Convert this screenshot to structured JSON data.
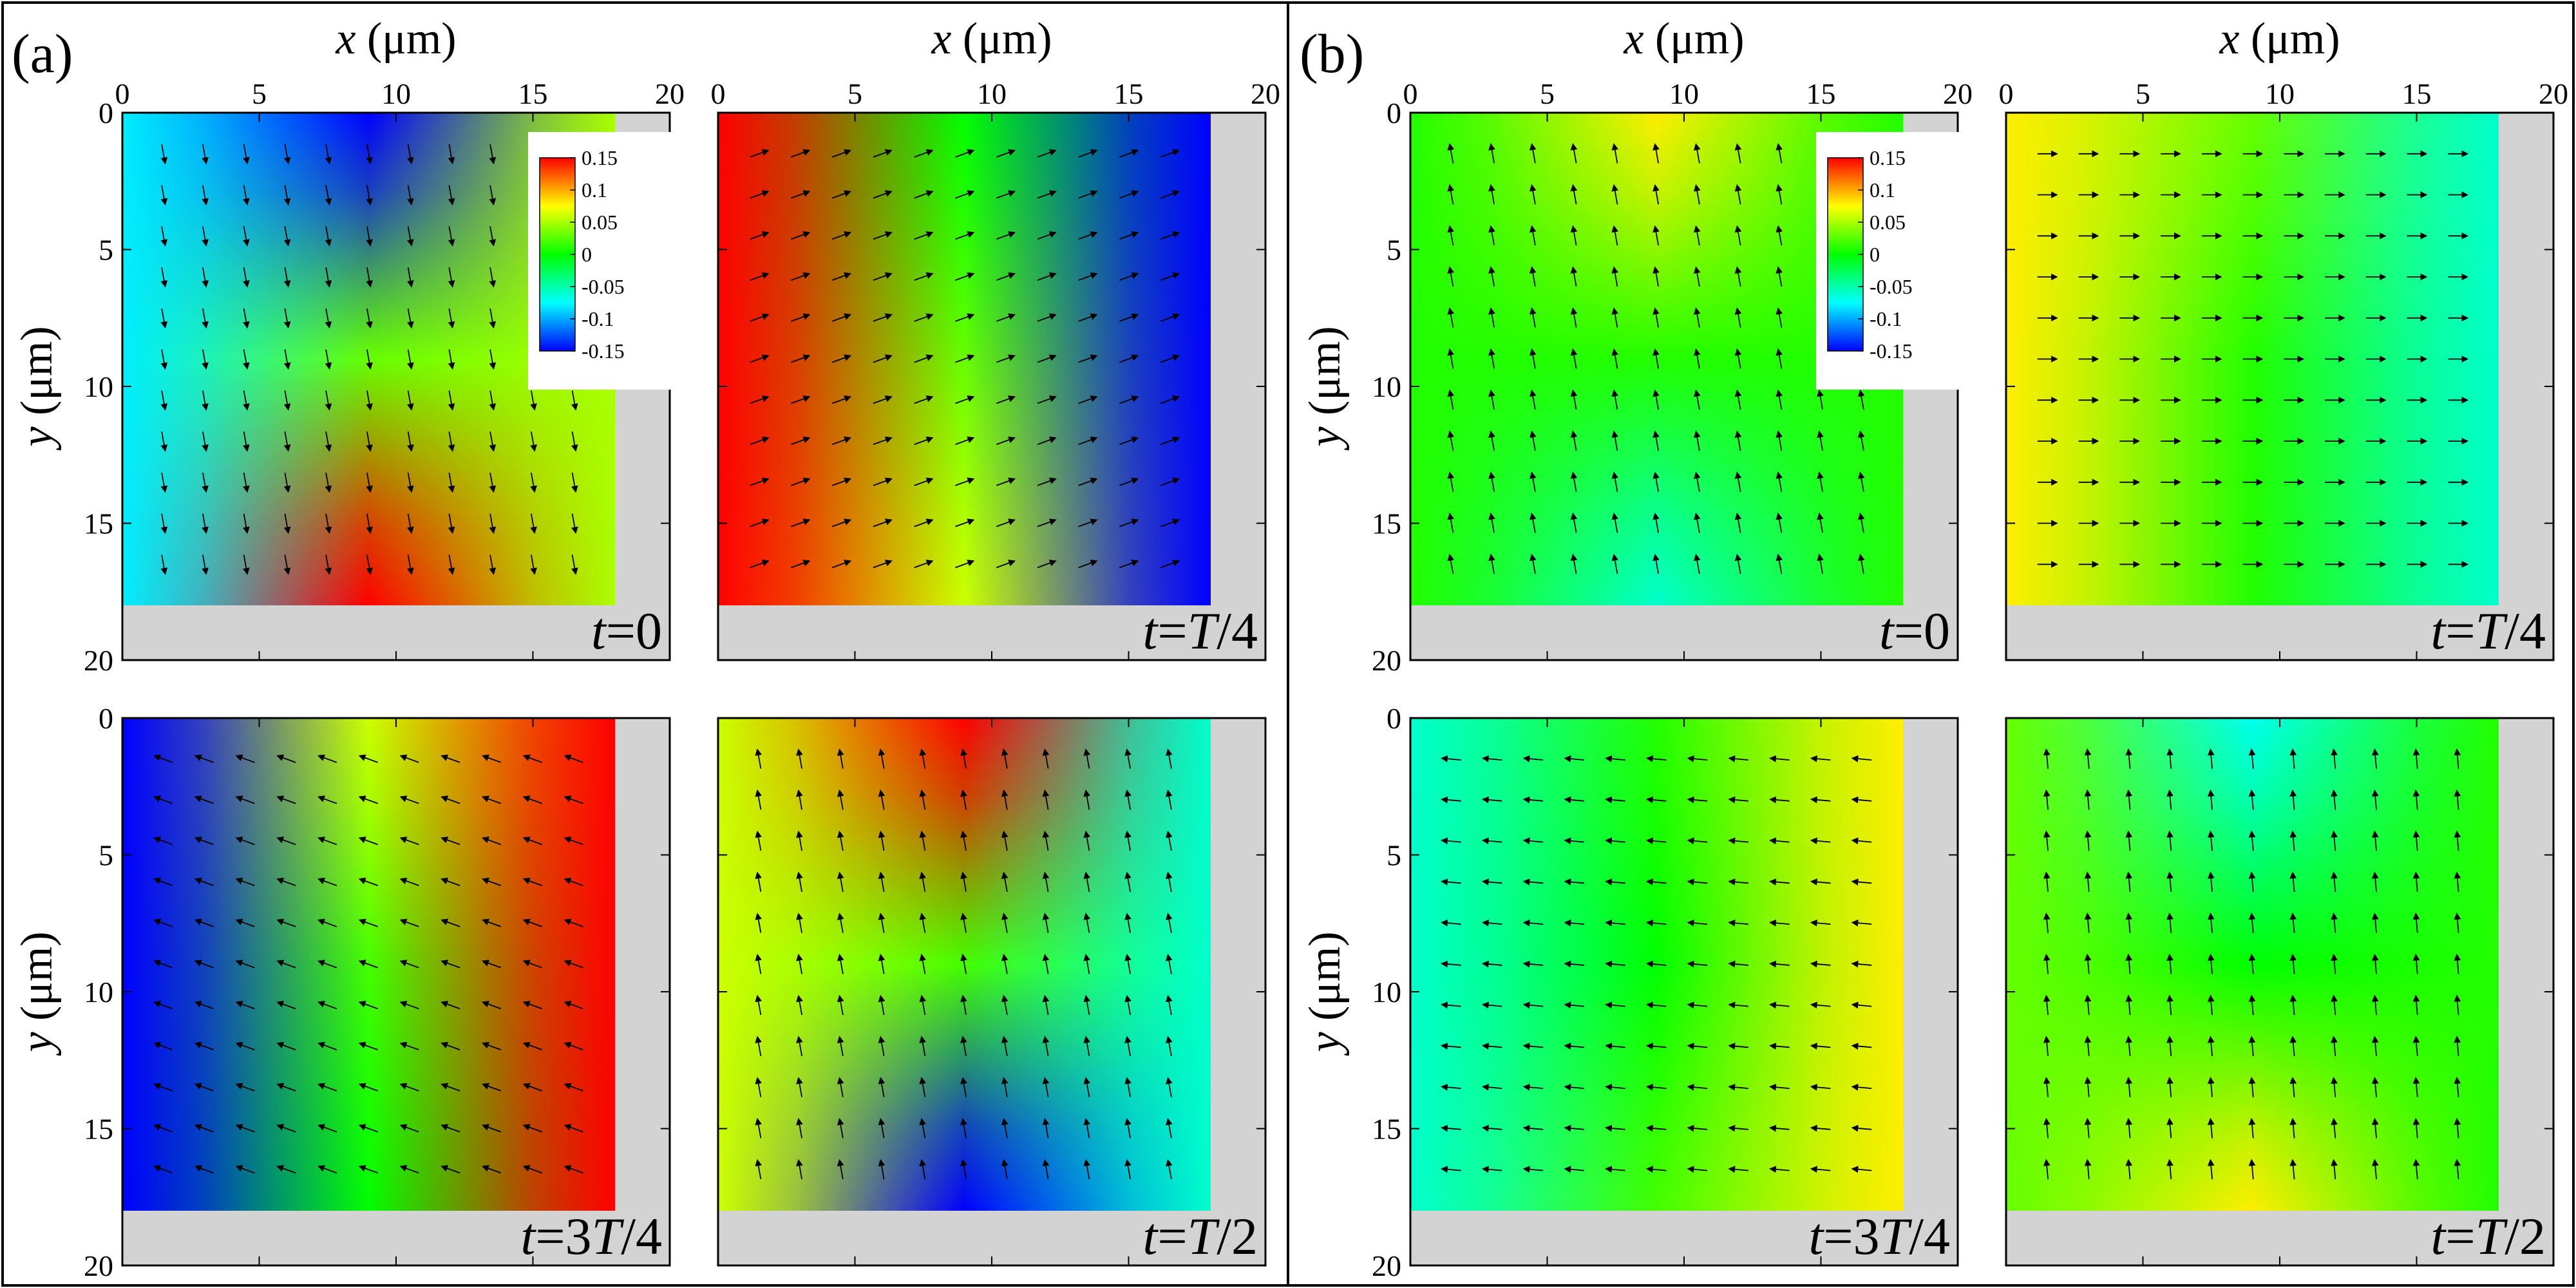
{
  "figure": {
    "colors": {
      "wall": "#d3d3d3",
      "frame": "#000000",
      "arrow": "#000000",
      "colormap": [
        "#0000ff",
        "#00ffff",
        "#00ff00",
        "#ffff00",
        "#ff0000"
      ]
    }
  },
  "chart_data": [
    {
      "panel": "(a)",
      "type": "heatmap",
      "colorbar": {
        "ticks": [
          "0.15",
          "0.1",
          "0.05",
          "0",
          "-0.05",
          "-0.1",
          "-0.15"
        ],
        "range": [
          -0.15,
          0.15
        ]
      },
      "subplots": [
        {
          "time_label": "t=0",
          "time_parts": [
            "t",
            "=0"
          ],
          "xlabel": "x (μm)",
          "ylabel": "y (μm)",
          "xlim": [
            0,
            20
          ],
          "ylim": [
            0,
            20
          ],
          "x_ticks": [
            "0",
            "5",
            "10",
            "15",
            "20"
          ],
          "y_ticks": [
            "0",
            "5",
            "10",
            "15",
            "20"
          ],
          "domain_extent_um": 18,
          "edge_values": {
            "top": -0.16,
            "bottom": 0.15,
            "left": -0.08,
            "right": 0.05
          },
          "interior_value": 0.03,
          "arrow_direction_deg": -80,
          "colorbar_shown": true
        },
        {
          "time_label": "t=T/4",
          "time_parts": [
            "t",
            "=",
            "T",
            "/4"
          ],
          "xlabel": "x (μm)",
          "ylabel": "",
          "xlim": [
            0,
            20
          ],
          "ylim": [
            0,
            20
          ],
          "x_ticks": [
            "0",
            "5",
            "10",
            "15",
            "20"
          ],
          "y_ticks": [],
          "domain_extent_um": 18,
          "edge_values": {
            "top": 0.0,
            "bottom": 0.06,
            "left": 0.16,
            "right": -0.16
          },
          "interior_value": 0.03,
          "arrow_direction_deg": 20,
          "colorbar_shown": false
        },
        {
          "time_label": "t=3T/4",
          "time_parts": [
            "t",
            "=3",
            "T",
            "/4"
          ],
          "xlabel": "",
          "ylabel": "y (μm)",
          "xlim": [
            0,
            20
          ],
          "ylim": [
            0,
            20
          ],
          "x_ticks": [],
          "y_ticks": [
            "0",
            "5",
            "10",
            "15",
            "20"
          ],
          "domain_extent_um": 18,
          "edge_values": {
            "top": 0.06,
            "bottom": 0.0,
            "left": -0.16,
            "right": 0.16
          },
          "interior_value": 0.02,
          "arrow_direction_deg": 160,
          "colorbar_shown": false
        },
        {
          "time_label": "t=T/2",
          "time_parts": [
            "t",
            "=",
            "T",
            "/2"
          ],
          "xlabel": "",
          "ylabel": "",
          "xlim": [
            0,
            20
          ],
          "ylim": [
            0,
            20
          ],
          "x_ticks": [],
          "y_ticks": [],
          "domain_extent_um": 18,
          "edge_values": {
            "top": 0.16,
            "bottom": -0.16,
            "left": 0.06,
            "right": -0.06
          },
          "interior_value": 0.02,
          "arrow_direction_deg": 100,
          "colorbar_shown": false
        }
      ]
    },
    {
      "panel": "(b)",
      "type": "heatmap",
      "colorbar": {
        "ticks": [
          "0.15",
          "0.1",
          "0.05",
          "0",
          "-0.05",
          "-0.1",
          "-0.15"
        ],
        "range": [
          -0.15,
          0.15
        ]
      },
      "subplots": [
        {
          "time_label": "t=0",
          "time_parts": [
            "t",
            "=0"
          ],
          "xlabel": "x (μm)",
          "ylabel": "y (μm)",
          "xlim": [
            0,
            20
          ],
          "ylim": [
            0,
            20
          ],
          "x_ticks": [
            "0",
            "5",
            "10",
            "15",
            "20"
          ],
          "y_ticks": [
            "0",
            "5",
            "10",
            "15",
            "20"
          ],
          "domain_extent_um": 18,
          "edge_values": {
            "top": 0.08,
            "bottom": -0.06,
            "left": 0.01,
            "right": 0.01
          },
          "interior_value": 0.01,
          "arrow_direction_deg": 100,
          "colorbar_shown": true
        },
        {
          "time_label": "t=T/4",
          "time_parts": [
            "t",
            "=",
            "T",
            "/4"
          ],
          "xlabel": "x (μm)",
          "ylabel": "",
          "xlim": [
            0,
            20
          ],
          "ylim": [
            0,
            20
          ],
          "x_ticks": [
            "0",
            "5",
            "10",
            "15",
            "20"
          ],
          "y_ticks": [],
          "domain_extent_um": 18,
          "edge_values": {
            "top": 0.03,
            "bottom": 0.01,
            "left": 0.08,
            "right": -0.06
          },
          "interior_value": 0.01,
          "arrow_direction_deg": 0,
          "colorbar_shown": false
        },
        {
          "time_label": "t=3T/4",
          "time_parts": [
            "t",
            "=3",
            "T",
            "/4"
          ],
          "xlabel": "",
          "ylabel": "y (μm)",
          "xlim": [
            0,
            20
          ],
          "ylim": [
            0,
            20
          ],
          "x_ticks": [],
          "y_ticks": [
            "0",
            "5",
            "10",
            "15",
            "20"
          ],
          "domain_extent_um": 18,
          "edge_values": {
            "top": 0.01,
            "bottom": 0.02,
            "left": -0.06,
            "right": 0.08
          },
          "interior_value": 0.0,
          "arrow_direction_deg": 175,
          "colorbar_shown": false
        },
        {
          "time_label": "t=T/2",
          "time_parts": [
            "t",
            "=",
            "T",
            "/2"
          ],
          "xlabel": "",
          "ylabel": "",
          "xlim": [
            0,
            20
          ],
          "ylim": [
            0,
            20
          ],
          "x_ticks": [],
          "y_ticks": [],
          "domain_extent_um": 18,
          "edge_values": {
            "top": -0.07,
            "bottom": 0.08,
            "left": 0.03,
            "right": 0.01
          },
          "interior_value": 0.0,
          "arrow_direction_deg": 95,
          "colorbar_shown": false
        }
      ]
    }
  ]
}
